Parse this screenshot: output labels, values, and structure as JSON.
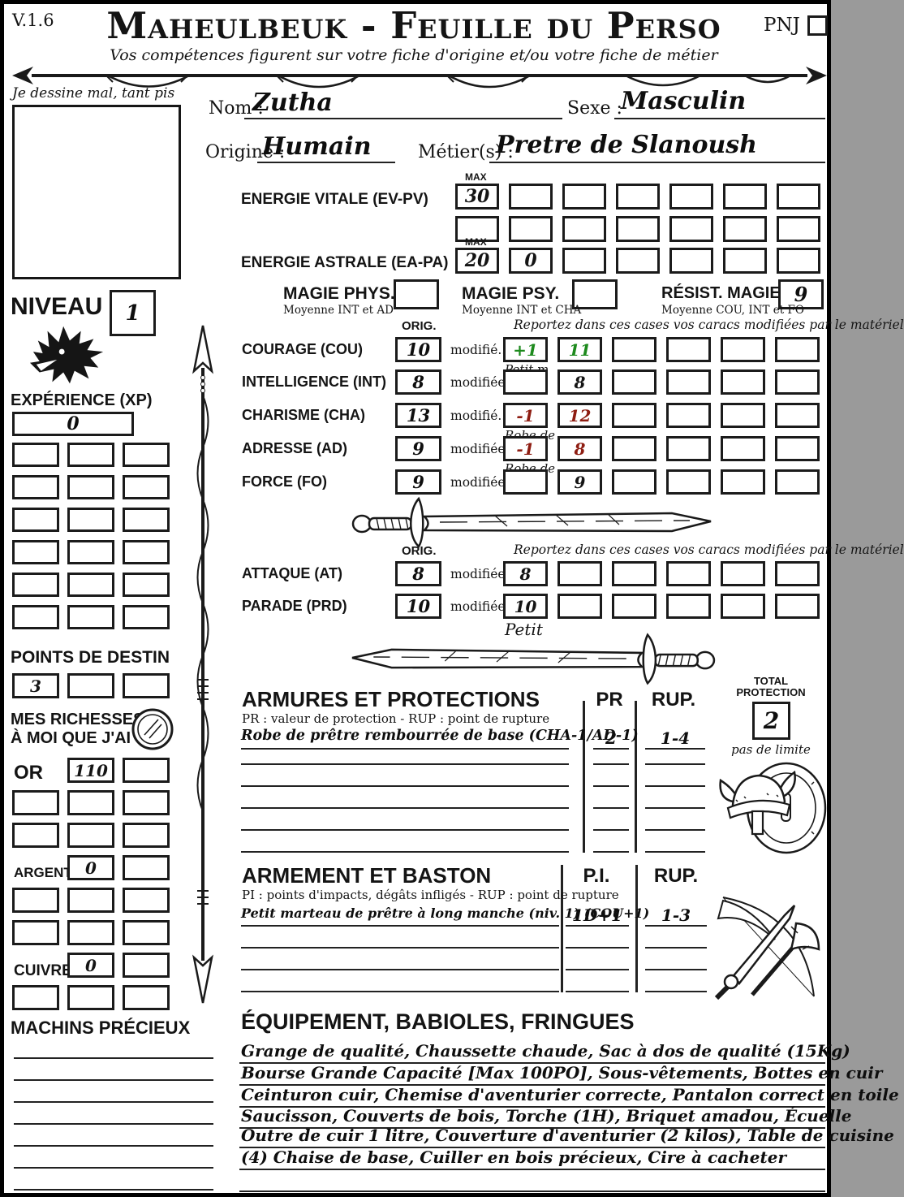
{
  "meta": {
    "version": "V.1.6",
    "pnj_label": "PNJ"
  },
  "header": {
    "title": "Maheulbeuk - Feuille du Perso",
    "subtitle": "Vos compétences figurent sur votre fiche d'origine et/ou votre fiche de métier"
  },
  "portrait": {
    "caption": "Je dessine mal, tant pis"
  },
  "identity": {
    "nom_label": "Nom :",
    "nom": "Zutha",
    "sexe_label": "Sexe :",
    "sexe": "Masculin",
    "origine_label": "Origine :",
    "origine": "Humain",
    "metier_label": "Métier(s) :",
    "metier": "Pretre de Slanoush"
  },
  "energies": {
    "max_label": "MAX",
    "ev_label": "ENERGIE VITALE (EV-PV)",
    "ev_max": "30",
    "ea_label": "ENERGIE ASTRALE (EA-PA)",
    "ea_max": "20",
    "ea_current": "0"
  },
  "magic": {
    "phys_label": "MAGIE PHYS.",
    "phys_note": "Moyenne INT et AD",
    "phys_value": "",
    "psy_label": "MAGIE PSY.",
    "psy_note": "Moyenne INT et CHA",
    "psy_value": "",
    "resist_label": "RÉSIST. MAGIE",
    "resist_note": "Moyenne COU, INT et FO",
    "resist_value": "9"
  },
  "stats": {
    "orig_label": "ORIG.",
    "report_note": "Reportez dans ces cases vos caracs modifiées par le matériel",
    "rows": [
      {
        "label": "COURAGE (COU)",
        "orig": "10",
        "modif_label": "modifié...",
        "mod1": "+1",
        "mod2": "11",
        "note": "Petit m"
      },
      {
        "label": "INTELLIGENCE (INT)",
        "orig": "8",
        "modif_label": "modifiée...",
        "mod1": "",
        "mod2": "8",
        "note": ""
      },
      {
        "label": "CHARISME (CHA)",
        "orig": "13",
        "modif_label": "modifié...",
        "mod1": "-1",
        "mod2": "12",
        "note": "Robe de"
      },
      {
        "label": "ADRESSE (AD)",
        "orig": "9",
        "modif_label": "modifiée...",
        "mod1": "-1",
        "mod2": "8",
        "note": "Robe de"
      },
      {
        "label": "FORCE (FO)",
        "orig": "9",
        "modif_label": "modifiée...",
        "mod1": "",
        "mod2": "9",
        "note": ""
      }
    ]
  },
  "combat": {
    "orig_label": "ORIG.",
    "report_note": "Reportez dans ces cases vos caracs modifiées par le matériel",
    "rows": [
      {
        "label": "ATTAQUE (AT)",
        "orig": "8",
        "modif_label": "modifiée...",
        "mod1": "8",
        "note": ""
      },
      {
        "label": "PARADE (PRD)",
        "orig": "10",
        "modif_label": "modifiée...",
        "mod1": "10",
        "note": "Petit"
      }
    ]
  },
  "sidebar": {
    "niveau_label": "NIVEAU",
    "niveau_value": "1",
    "xp_label": "EXPÉRIENCE (XP)",
    "xp_value": "0",
    "destin_label": "POINTS DE DESTIN",
    "destin_value": "3",
    "richesses_label_line1": "MES RICHESSES",
    "richesses_label_line2": "À MOI QUE J'AI",
    "or_label": "OR",
    "or_value": "110",
    "argent_label": "ARGENT",
    "argent_value": "0",
    "cuivre_label": "CUIVRE",
    "cuivre_value": "0",
    "machins_label": "MACHINS PRÉCIEUX"
  },
  "armor": {
    "title": "ARMURES ET PROTECTIONS",
    "subtitle": "PR : valeur de protection - RUP : point de rupture",
    "col_pr": "PR",
    "col_rup": "RUP.",
    "total_label_line1": "TOTAL",
    "total_label_line2": "PROTECTION",
    "total_value": "2",
    "total_note": "pas de limite",
    "rows": [
      {
        "name": "Robe de prêtre rembourrée de base (CHA-1/AD-1)",
        "pr": "2",
        "rup": "1-4"
      }
    ]
  },
  "weapons": {
    "title": "ARMEMENT ET BASTON",
    "subtitle": "PI : points d'impacts, dégâts infligés - RUP : point de rupture",
    "col_pi": "P.I.",
    "col_rup": "RUP.",
    "rows": [
      {
        "name": "Petit marteau de prêtre à long manche (niv. 1) (COU+1)",
        "pi": "1D+1",
        "rup": "1-3"
      }
    ]
  },
  "equipment": {
    "title": "ÉQUIPEMENT, BABIOLES, FRINGUES",
    "lines": [
      "Grange de qualité, Chaussette chaude, Sac à dos de qualité (15Kg)",
      "Bourse Grande Capacité [Max 100PO], Sous-vêtements, Bottes en cuir",
      "Ceinturon cuir, Chemise d'aventurier correcte, Pantalon correct en toile",
      "Saucisson, Couverts de bois, Torche (1H), Briquet amadou, Écuelle",
      "Outre de cuir 1 litre, Couverture d'aventurier (2 kilos), Table de cuisine",
      "(4) Chaise de base, Cuiller en bois précieux, Cire à cacheter"
    ]
  },
  "icons": {
    "divider": "spear-banner",
    "niveau": "dragon-head",
    "sidebar": "vertical-spear",
    "stat_divider": "sword-right",
    "combat_divider": "sword-left",
    "richesses": "gold-coin",
    "armor_corner": "horned-helmet-and-shield",
    "weapons_corner": "crossed-sword-axe-bow"
  },
  "colors": {
    "positive": "#1d8a1d",
    "negative": "#8e1d12",
    "ink": "#141414"
  }
}
